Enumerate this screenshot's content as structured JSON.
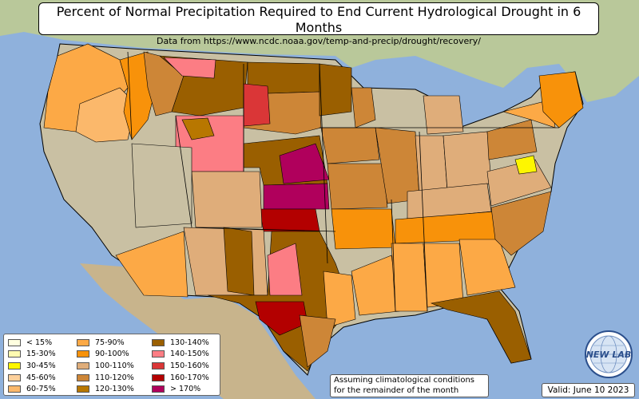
{
  "header": {
    "title": "Percent of Normal Precipitation Required to End Current Hydrological Drought in 6 Months",
    "subtitle": "Data from https://www.ncdc.noaa.gov/temp-and-precip/drought/recovery/"
  },
  "legend": {
    "items": [
      {
        "label": "< 15%",
        "color": "#ffffe0"
      },
      {
        "label": "15-30%",
        "color": "#fefbb1"
      },
      {
        "label": "30-45%",
        "color": "#fef600"
      },
      {
        "label": "45-60%",
        "color": "#fdd09b"
      },
      {
        "label": "60-75%",
        "color": "#fbb86b"
      },
      {
        "label": "75-90%",
        "color": "#fca946"
      },
      {
        "label": "90-100%",
        "color": "#f8920a"
      },
      {
        "label": "100-110%",
        "color": "#dfad7a"
      },
      {
        "label": "110-120%",
        "color": "#cd8637"
      },
      {
        "label": "120-130%",
        "color": "#b87700"
      },
      {
        "label": "130-140%",
        "color": "#9a5f00"
      },
      {
        "label": "140-150%",
        "color": "#fc7d84"
      },
      {
        "label": "150-160%",
        "color": "#da3637"
      },
      {
        "label": "160-170%",
        "color": "#b30000"
      },
      {
        "label": "> 170%",
        "color": "#b0005c"
      }
    ]
  },
  "footer": {
    "note_line1": "Assuming climatological conditions",
    "note_line2": "for the remainder of the month",
    "valid_date": "Valid: June 10 2023"
  },
  "logo": {
    "label": "NEW LAB",
    "icon": "globe-logo-icon"
  },
  "colors": {
    "water": "#8fb1dc",
    "land_relief": "#c9c0a3",
    "canada": "#b9c89a",
    "mexico": "#c8b48c"
  }
}
